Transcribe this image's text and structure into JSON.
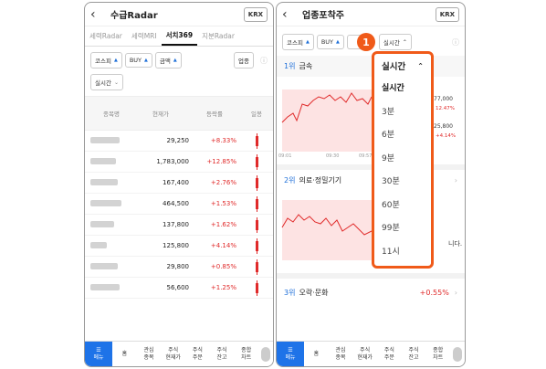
{
  "left": {
    "title": "수급Radar",
    "krx": "KRX",
    "tabs": [
      "세력Radar",
      "세력MRI",
      "서치369",
      "지분Radar"
    ],
    "filters": [
      "코스피",
      "BUY",
      "금액"
    ],
    "upjong": "업종",
    "period": "실시간",
    "columns": [
      "종목명",
      "현재가",
      "등락률",
      "일봉"
    ],
    "rows": [
      {
        "price": "29,250",
        "change": "+8.33%"
      },
      {
        "price": "1,783,000",
        "change": "+12.85%"
      },
      {
        "price": "167,400",
        "change": "+2.76%"
      },
      {
        "price": "464,500",
        "change": "+1.53%"
      },
      {
        "price": "137,800",
        "change": "+1.62%"
      },
      {
        "price": "125,800",
        "change": "+4.14%"
      },
      {
        "price": "29,800",
        "change": "+0.85%"
      },
      {
        "price": "56,600",
        "change": "+1.25%"
      }
    ],
    "nav": [
      "메뉴",
      "홈",
      "관심\n종목",
      "주식\n현재가",
      "주식\n주문",
      "주식\n잔고",
      "종합\n차트"
    ]
  },
  "right": {
    "title": "업종포착주",
    "krx": "KRX",
    "filters": [
      "코스피",
      "BUY"
    ],
    "period_btn": "실시간",
    "sectors": [
      {
        "rank": "1위",
        "name": "금속",
        "v1": "77,000",
        "p1": "12.47%",
        "v2": "25,800",
        "p2": "+4.14%"
      },
      {
        "rank": "2위",
        "name": "의료·정밀기기"
      },
      {
        "rank": "3위",
        "name": "오락·문화",
        "pct": "+0.55%"
      }
    ],
    "times": [
      "09:01",
      "09:30",
      "09:57"
    ],
    "side_text": "니다.",
    "nav": [
      "메뉴",
      "홈",
      "관심\n종목",
      "주식\n현재가",
      "주식\n주문",
      "주식\n잔고",
      "종합\n차트"
    ]
  },
  "popup": {
    "badge": "1",
    "header": "실시간",
    "items": [
      "실시간",
      "3분",
      "6분",
      "9분",
      "30분",
      "60분",
      "99분",
      "11시"
    ]
  },
  "colors": {
    "up": "#e02a2a",
    "accent": "#1e73e8",
    "highlight": "#f05a19"
  }
}
